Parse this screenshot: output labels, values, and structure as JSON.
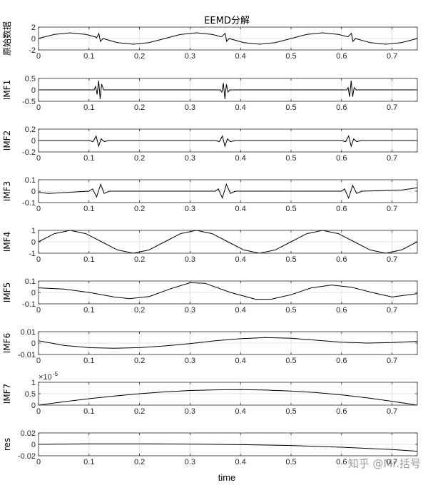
{
  "figure": {
    "title": "EEMD分解",
    "xlabel": "time",
    "watermark": "知乎 @Mr.括号"
  },
  "chart_data": [
    {
      "type": "line",
      "ylabel": "原始数据",
      "xlim": [
        0,
        0.75
      ],
      "ylim": [
        -2,
        2
      ],
      "yticks": [
        -2,
        0,
        2
      ],
      "yticklabels": [
        "-2",
        "0",
        "2"
      ],
      "xticks": [
        0,
        0.1,
        0.2,
        0.3,
        0.4,
        0.5,
        0.6,
        0.7
      ],
      "xticklabels": [
        "0",
        "0.1",
        "0.2",
        "0.3",
        "0.4",
        "0.5",
        "0.6",
        "0.7"
      ],
      "grid": true,
      "series": [
        {
          "x": [
            0,
            0.0312,
            0.0625,
            0.0938,
            0.1125,
            0.115,
            0.1195,
            0.1225,
            0.1275,
            0.1562,
            0.1875,
            0.2188,
            0.25,
            0.2812,
            0.3125,
            0.3438,
            0.3625,
            0.3695,
            0.3725,
            0.3775,
            0.4062,
            0.4375,
            0.4688,
            0.5,
            0.5312,
            0.5625,
            0.5938,
            0.6125,
            0.6195,
            0.6225,
            0.6275,
            0.6562,
            0.6875,
            0.7188,
            0.75
          ],
          "y": [
            0,
            0.71,
            1.0,
            0.71,
            0.3,
            0.1,
            0.9,
            -0.5,
            0,
            -0.71,
            -1.0,
            -0.71,
            0,
            0.71,
            1.0,
            0.71,
            0.3,
            0.9,
            -0.5,
            0,
            -0.71,
            -1.0,
            -0.71,
            0,
            0.71,
            1.0,
            0.71,
            0.3,
            0.9,
            -0.5,
            0,
            -0.71,
            -1.0,
            -0.71,
            0
          ]
        }
      ]
    },
    {
      "type": "line",
      "ylabel": "IMF1",
      "xlim": [
        0,
        0.75
      ],
      "ylim": [
        -0.5,
        0.5
      ],
      "yticks": [
        -0.5,
        0,
        0.5
      ],
      "yticklabels": [
        "-0.5",
        "0",
        "0.5"
      ],
      "xticks": [
        0,
        0.1,
        0.2,
        0.3,
        0.4,
        0.5,
        0.6,
        0.7
      ],
      "xticklabels": [
        "0",
        "0.1",
        "0.2",
        "0.3",
        "0.4",
        "0.5",
        "0.6",
        "0.7"
      ],
      "grid": true,
      "series": [
        {
          "x": [
            0,
            0.11,
            0.113,
            0.116,
            0.119,
            0.122,
            0.125,
            0.129,
            0.2,
            0.36,
            0.363,
            0.366,
            0.369,
            0.372,
            0.375,
            0.379,
            0.5,
            0.61,
            0.613,
            0.616,
            0.619,
            0.622,
            0.625,
            0.629,
            0.75
          ],
          "y": [
            0,
            0,
            0.15,
            -0.2,
            0.4,
            -0.4,
            0.25,
            0,
            0,
            0,
            -0.1,
            0.3,
            -0.4,
            0.25,
            -0.1,
            0,
            0,
            0,
            0.1,
            -0.3,
            0.4,
            -0.3,
            0.1,
            0,
            0
          ]
        }
      ]
    },
    {
      "type": "line",
      "ylabel": "IMF2",
      "xlim": [
        0,
        0.75
      ],
      "ylim": [
        -0.2,
        0.2
      ],
      "yticks": [
        -0.2,
        0,
        0.2
      ],
      "yticklabels": [
        "-0.2",
        "0",
        "0.2"
      ],
      "xticks": [
        0,
        0.1,
        0.2,
        0.3,
        0.4,
        0.5,
        0.6,
        0.7
      ],
      "xticklabels": [
        "0",
        "0.1",
        "0.2",
        "0.3",
        "0.4",
        "0.5",
        "0.6",
        "0.7"
      ],
      "grid": true,
      "series": [
        {
          "x": [
            0,
            0.1,
            0.108,
            0.114,
            0.119,
            0.124,
            0.13,
            0.14,
            0.35,
            0.358,
            0.364,
            0.369,
            0.374,
            0.38,
            0.39,
            0.6,
            0.608,
            0.614,
            0.619,
            0.624,
            0.63,
            0.64,
            0.75
          ],
          "y": [
            0,
            0,
            -0.02,
            0.08,
            -0.1,
            0.03,
            -0.02,
            0,
            0,
            -0.02,
            0.08,
            -0.1,
            0.03,
            -0.02,
            0,
            0,
            -0.02,
            0.08,
            -0.1,
            0.03,
            -0.02,
            0,
            0
          ]
        }
      ]
    },
    {
      "type": "line",
      "ylabel": "IMF3",
      "xlim": [
        0,
        0.75
      ],
      "ylim": [
        -0.1,
        0.1
      ],
      "yticks": [
        -0.1,
        0,
        0.1
      ],
      "yticklabels": [
        "-0.1",
        "0",
        "0.1"
      ],
      "xticks": [
        0,
        0.1,
        0.2,
        0.3,
        0.4,
        0.5,
        0.6,
        0.7
      ],
      "xticklabels": [
        "0",
        "0.1",
        "0.2",
        "0.3",
        "0.4",
        "0.5",
        "0.6",
        "0.7"
      ],
      "grid": true,
      "series": [
        {
          "x": [
            0,
            0.02,
            0.1,
            0.107,
            0.115,
            0.123,
            0.13,
            0.14,
            0.35,
            0.356,
            0.364,
            0.372,
            0.38,
            0.39,
            0.6,
            0.606,
            0.614,
            0.622,
            0.63,
            0.64,
            0.72,
            0.75
          ],
          "y": [
            -0.01,
            -0.02,
            0,
            0.02,
            -0.05,
            0.06,
            -0.02,
            0,
            0,
            0.02,
            -0.06,
            0.06,
            -0.02,
            0,
            0,
            0.02,
            -0.06,
            0.05,
            -0.02,
            0,
            0.01,
            0.03
          ]
        }
      ]
    },
    {
      "type": "line",
      "ylabel": "IMF4",
      "xlim": [
        0,
        0.75
      ],
      "ylim": [
        -1,
        1
      ],
      "yticks": [
        -1,
        0,
        1
      ],
      "yticklabels": [
        "-1",
        "0",
        "1"
      ],
      "xticks": [
        0,
        0.1,
        0.2,
        0.3,
        0.4,
        0.5,
        0.6,
        0.7
      ],
      "xticklabels": [
        "0",
        "0.1",
        "0.2",
        "0.3",
        "0.4",
        "0.5",
        "0.6",
        "0.7"
      ],
      "grid": true,
      "series": [
        {
          "x": [
            0,
            0.0312,
            0.0625,
            0.0938,
            0.125,
            0.1562,
            0.1875,
            0.2188,
            0.25,
            0.2812,
            0.3125,
            0.3438,
            0.375,
            0.4062,
            0.4375,
            0.4688,
            0.5,
            0.5312,
            0.5625,
            0.5938,
            0.625,
            0.6562,
            0.6875,
            0.7188,
            0.75
          ],
          "y": [
            0,
            0.71,
            1.0,
            0.71,
            0,
            -0.71,
            -1.0,
            -0.71,
            0,
            0.71,
            1.0,
            0.71,
            0,
            -0.71,
            -1.0,
            -0.71,
            0,
            0.71,
            1.0,
            0.71,
            0,
            -0.71,
            -1.0,
            -0.71,
            0
          ]
        }
      ]
    },
    {
      "type": "line",
      "ylabel": "IMF5",
      "xlim": [
        0,
        0.75
      ],
      "ylim": [
        -0.1,
        0.1
      ],
      "yticks": [
        -0.1,
        0,
        0.1
      ],
      "yticklabels": [
        "-0.1",
        "0",
        "0.1"
      ],
      "xticks": [
        0,
        0.1,
        0.2,
        0.3,
        0.4,
        0.5,
        0.6,
        0.7
      ],
      "xticklabels": [
        "0",
        "0.1",
        "0.2",
        "0.3",
        "0.4",
        "0.5",
        "0.6",
        "0.7"
      ],
      "grid": true,
      "series": [
        {
          "x": [
            0,
            0.05,
            0.1,
            0.15,
            0.18,
            0.22,
            0.26,
            0.3,
            0.33,
            0.38,
            0.43,
            0.46,
            0.5,
            0.54,
            0.58,
            0.62,
            0.66,
            0.7,
            0.75
          ],
          "y": [
            0.04,
            0.03,
            0.0,
            -0.04,
            -0.055,
            -0.035,
            0.03,
            0.085,
            0.08,
            0.0,
            -0.06,
            -0.06,
            -0.02,
            0.04,
            0.065,
            0.045,
            0.0,
            -0.04,
            -0.01
          ]
        }
      ]
    },
    {
      "type": "line",
      "ylabel": "IMF6",
      "xlim": [
        0,
        0.75
      ],
      "ylim": [
        -0.01,
        0.01
      ],
      "yticks": [
        -0.01,
        0,
        0.01
      ],
      "yticklabels": [
        "-0.01",
        "0",
        "0.01"
      ],
      "xticks": [
        0,
        0.1,
        0.2,
        0.3,
        0.4,
        0.5,
        0.6,
        0.7
      ],
      "xticklabels": [
        "0",
        "0.1",
        "0.2",
        "0.3",
        "0.4",
        "0.5",
        "0.6",
        "0.7"
      ],
      "grid": true,
      "series": [
        {
          "x": [
            0,
            0.05,
            0.1,
            0.15,
            0.2,
            0.25,
            0.3,
            0.35,
            0.4,
            0.45,
            0.5,
            0.55,
            0.6,
            0.65,
            0.7,
            0.75
          ],
          "y": [
            0.002,
            -0.002,
            -0.004,
            -0.0045,
            -0.004,
            -0.0025,
            -0.0005,
            0.002,
            0.0038,
            0.0048,
            0.0042,
            0.0025,
            0.0008,
            0.0,
            0.0005,
            0.0015
          ]
        }
      ]
    },
    {
      "type": "line",
      "ylabel": "IMF7",
      "xlim": [
        0,
        0.75
      ],
      "ylim": [
        0,
        1
      ],
      "yticks": [
        0,
        0.5,
        1
      ],
      "yticklabels": [
        "0",
        "0.5",
        "1"
      ],
      "exponent_label": "×10",
      "exponent_power": "-5",
      "xticks": [
        0,
        0.1,
        0.2,
        0.3,
        0.4,
        0.5,
        0.6,
        0.7
      ],
      "xticklabels": [
        "0",
        "0.1",
        "0.2",
        "0.3",
        "0.4",
        "0.5",
        "0.6",
        "0.7"
      ],
      "grid": true,
      "series": [
        {
          "x": [
            0,
            0.05,
            0.1,
            0.15,
            0.2,
            0.25,
            0.3,
            0.35,
            0.4,
            0.45,
            0.5,
            0.55,
            0.6,
            0.65,
            0.7,
            0.75
          ],
          "y": [
            0.0,
            0.15,
            0.28,
            0.4,
            0.5,
            0.58,
            0.64,
            0.67,
            0.68,
            0.66,
            0.62,
            0.55,
            0.45,
            0.32,
            0.17,
            0.0
          ]
        }
      ]
    },
    {
      "type": "line",
      "ylabel": "res",
      "xlim": [
        0,
        0.75
      ],
      "ylim": [
        -0.02,
        0.02
      ],
      "yticks": [
        -0.02,
        0,
        0.02
      ],
      "yticklabels": [
        "-0.02",
        "0",
        "0.02"
      ],
      "xticks": [
        0,
        0.1,
        0.2,
        0.3,
        0.4,
        0.5,
        0.6,
        0.7
      ],
      "xticklabels": [
        "0",
        "0.1",
        "0.2",
        "0.3",
        "0.4",
        "0.5",
        "0.6",
        "0.7"
      ],
      "grid": true,
      "series": [
        {
          "x": [
            0,
            0.1,
            0.2,
            0.3,
            0.4,
            0.5,
            0.6,
            0.7,
            0.75
          ],
          "y": [
            0.0,
            0.001,
            0.001,
            0.0005,
            -0.0005,
            -0.002,
            -0.005,
            -0.009,
            -0.012
          ]
        }
      ]
    }
  ]
}
